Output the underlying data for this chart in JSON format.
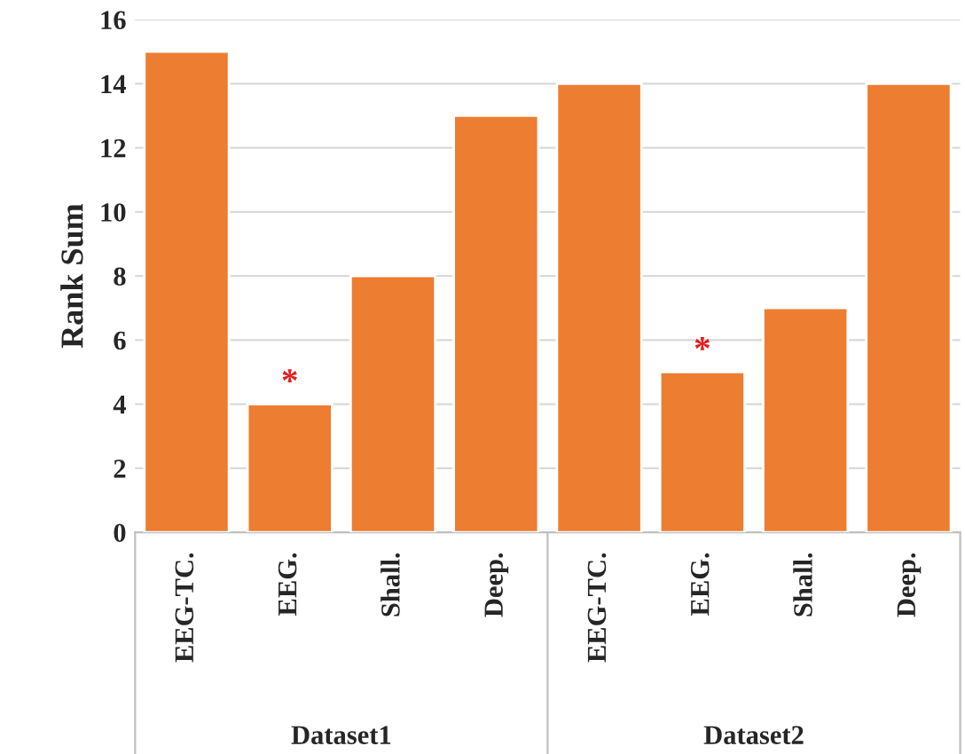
{
  "chart_data": {
    "type": "bar",
    "ylabel": "Rank Sum",
    "categories": [
      "EEG-TC.",
      "EEG.",
      "Shall.",
      "Deep.",
      "EEG-TC.",
      "EEG.",
      "Shall.",
      "Deep."
    ],
    "values": [
      15,
      4,
      8,
      13,
      14,
      5,
      7,
      14
    ],
    "value_labels": [
      null,
      "*",
      null,
      null,
      null,
      "*",
      null,
      null
    ],
    "color": "#ed7d31",
    "ylim": [
      0,
      16
    ],
    "yticks": [
      0,
      2,
      4,
      6,
      8,
      10,
      12,
      14,
      16
    ],
    "grid": "y",
    "annotations": [
      "Dataset1",
      "Dataset2"
    ]
  }
}
